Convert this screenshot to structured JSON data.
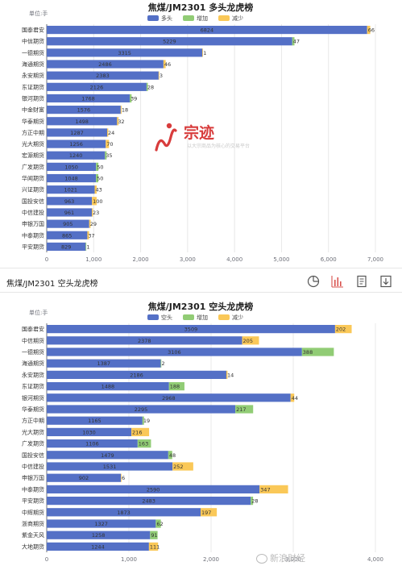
{
  "colors": {
    "series1": "#5470c6",
    "series2": "#91cc75",
    "series3": "#fac858",
    "axis": "#6e7079",
    "grid": "#e8e8e8",
    "toolbar_active": "#d9534f",
    "toolbar": "#555555",
    "watermark": "#d83c3c"
  },
  "section2_title": "焦煤/JM2301 空头龙虎榜",
  "toolbar": {
    "icons": [
      "pie-chart-icon",
      "bar-chart-icon",
      "data-view-icon",
      "download-icon"
    ]
  },
  "watermark": {
    "logo_text": "宗迹",
    "tagline": "以大宗商品为核心的交易平台",
    "footer": "新浪财经"
  },
  "chart_data": [
    {
      "type": "bar",
      "orientation": "horizontal",
      "stacked": true,
      "title": "焦煤/JM2301 多头龙虎榜",
      "unit_label": "单位:手",
      "legend": [
        "多头",
        "增加",
        "减少"
      ],
      "legend_position": "top",
      "categories": [
        "国泰君安",
        "中信期货",
        "一德期货",
        "海通期货",
        "永安期货",
        "东证期货",
        "银河期货",
        "中金财富",
        "华泰期货",
        "方正中期",
        "光大期货",
        "宏源期货",
        "广发期货",
        "华闻期货",
        "兴证期货",
        "国投安信",
        "中信建投",
        "申银万国",
        "中泰期货",
        "平安期货"
      ],
      "series": [
        {
          "name": "多头",
          "values": [
            6824,
            5229,
            3315,
            2486,
            2383,
            2126,
            1768,
            1576,
            1498,
            1287,
            1256,
            1240,
            1050,
            1048,
            1021,
            963,
            961,
            905,
            865,
            829
          ]
        },
        {
          "name": "增加",
          "values": [
            null,
            47,
            null,
            null,
            null,
            28,
            39,
            null,
            null,
            null,
            null,
            35,
            50,
            50,
            null,
            null,
            null,
            null,
            null,
            1
          ]
        },
        {
          "name": "减少",
          "values": [
            66,
            null,
            1,
            46,
            3,
            null,
            null,
            18,
            32,
            24,
            70,
            null,
            null,
            null,
            43,
            100,
            23,
            29,
            37,
            null
          ]
        }
      ],
      "xlim": [
        0,
        7000
      ],
      "xticks": [
        "0",
        "1,000",
        "2,000",
        "3,000",
        "4,000",
        "5,000",
        "6,000",
        "7,000"
      ],
      "grid": true
    },
    {
      "type": "bar",
      "orientation": "horizontal",
      "stacked": true,
      "title": "焦煤/JM2301 空头龙虎榜",
      "unit_label": "单位:手",
      "legend": [
        "空头",
        "增加",
        "减少"
      ],
      "legend_position": "top",
      "categories": [
        "国泰君安",
        "中信期货",
        "一德期货",
        "海通期货",
        "永安期货",
        "东证期货",
        "银河期货",
        "华泰期货",
        "方正中期",
        "光大期货",
        "广发期货",
        "国投安信",
        "中信建投",
        "申银万国",
        "中泰期货",
        "平安期货",
        "中辉期货",
        "浙商期货",
        "紫金天风",
        "大地期货"
      ],
      "series": [
        {
          "name": "空头",
          "values": [
            3509,
            2378,
            3106,
            1387,
            2186,
            1488,
            2968,
            2295,
            1165,
            1030,
            1106,
            1479,
            1531,
            902,
            2590,
            2483,
            1873,
            1327,
            1258,
            1244
          ]
        },
        {
          "name": "增加",
          "values": [
            null,
            null,
            388,
            2,
            null,
            188,
            null,
            217,
            19,
            null,
            163,
            48,
            null,
            null,
            null,
            28,
            null,
            62,
            91,
            null
          ]
        },
        {
          "name": "减少",
          "values": [
            202,
            205,
            null,
            null,
            14,
            null,
            44,
            null,
            null,
            216,
            null,
            null,
            252,
            6,
            347,
            null,
            197,
            null,
            null,
            111
          ]
        }
      ],
      "xlim": [
        0,
        4000
      ],
      "xticks": [
        "0",
        "1,000",
        "2,000",
        "3,000",
        "4,000"
      ],
      "grid": true
    }
  ]
}
